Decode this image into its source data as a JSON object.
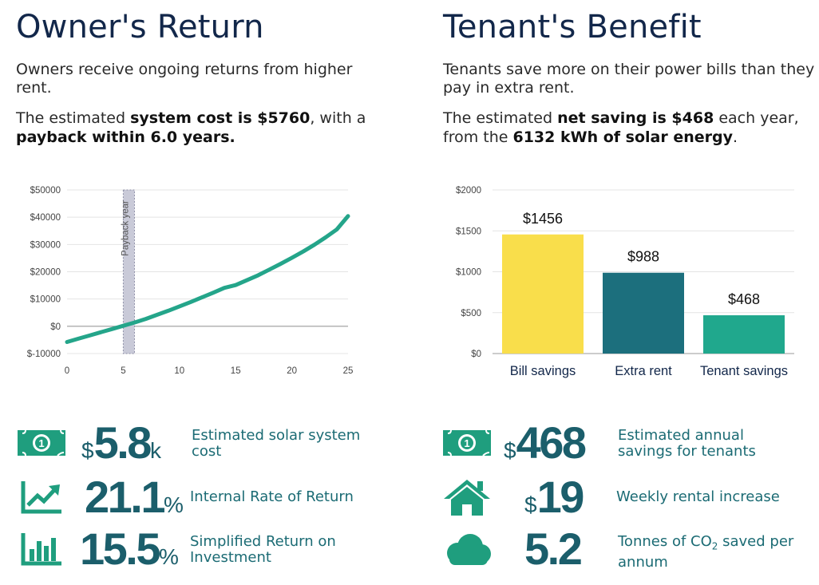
{
  "owner": {
    "heading": "Owner's Return",
    "intro": "Owners receive ongoing returns from higher rent.",
    "summary": {
      "t1": "The estimated ",
      "b1": "system cost is $5760",
      "t2": ", with a ",
      "b2": "payback within 6.0 years."
    }
  },
  "tenant": {
    "heading": "Tenant's Benefit",
    "intro": "Tenants save more on their power bills than they pay in extra rent.",
    "summary": {
      "t1": "The estimated ",
      "b1": "net saving is $468",
      "t2": " each year, from the ",
      "b2": "6132 kWh of solar energy",
      "t3": "."
    }
  },
  "chart_data": [
    {
      "type": "line",
      "title": "",
      "xlabel": "",
      "ylabel": "",
      "x": [
        0,
        1,
        2,
        3,
        4,
        5,
        6,
        7,
        8,
        9,
        10,
        11,
        12,
        13,
        14,
        15,
        16,
        17,
        18,
        19,
        20,
        21,
        22,
        23,
        24,
        25
      ],
      "series": [
        {
          "values": [
            -5760,
            -4560,
            -3400,
            -2200,
            -1000,
            200,
            1400,
            2700,
            4200,
            5700,
            7300,
            8900,
            10600,
            12300,
            14100,
            15100,
            16900,
            18700,
            20800,
            22900,
            25100,
            27400,
            29900,
            32600,
            35500,
            40400
          ],
          "color": "#24a58a"
        }
      ],
      "xticks": [
        0,
        5,
        10,
        15,
        20,
        25
      ],
      "yticks": [
        -10000,
        0,
        10000,
        20000,
        30000,
        40000,
        50000
      ],
      "ytick_labels": [
        "$-10000",
        "$0",
        "$10000",
        "$20000",
        "$30000",
        "$40000",
        "$50000"
      ],
      "xlim": [
        0,
        25
      ],
      "ylim": [
        -10000,
        50000
      ],
      "grid": true,
      "annotation": {
        "label": "Payback year",
        "x_start": 5,
        "x_end": 6
      }
    },
    {
      "type": "bar",
      "title": "",
      "categories": [
        "Bill savings",
        "Extra rent",
        "Tenant savings"
      ],
      "values": [
        1456,
        988,
        468
      ],
      "data_labels": [
        "$1456",
        "$988",
        "$468"
      ],
      "colors": [
        "#f9de4b",
        "#1c6f7d",
        "#20a88d"
      ],
      "yticks": [
        0,
        500,
        1000,
        1500,
        2000
      ],
      "ytick_labels": [
        "$0",
        "$500",
        "$1000",
        "$1500",
        "$2000"
      ],
      "ylim": [
        0,
        2000
      ],
      "grid": true
    }
  ],
  "stats": {
    "owner": [
      {
        "icon": "banknote-icon",
        "prefix": "$",
        "value": "5.8",
        "suffix": "k",
        "label": "Estimated solar system cost"
      },
      {
        "icon": "trend-up-icon",
        "prefix": "",
        "value": "21.1",
        "suffix": "%",
        "label": "Internal Rate of Return"
      },
      {
        "icon": "bar-chart-icon",
        "prefix": "",
        "value": "15.5",
        "suffix": "%",
        "label": "Simplified Return on Investment"
      }
    ],
    "tenant": [
      {
        "icon": "banknote-icon",
        "prefix": "$",
        "value": "468",
        "suffix": "",
        "label": "Estimated annual savings for tenants"
      },
      {
        "icon": "house-icon",
        "prefix": "$",
        "value": "19",
        "suffix": "",
        "label": "Weekly rental increase"
      },
      {
        "icon": "cloud-icon",
        "prefix": "",
        "value": "5.2",
        "suffix": "",
        "label_a": "Tonnes of CO",
        "label_sub": "2",
        "label_b": " saved per annum"
      }
    ]
  },
  "colors": {
    "heading": "#12274a",
    "teal_dark": "#1b5e6b",
    "teal_green": "#1f9e7e",
    "label": "#1b6b74"
  }
}
